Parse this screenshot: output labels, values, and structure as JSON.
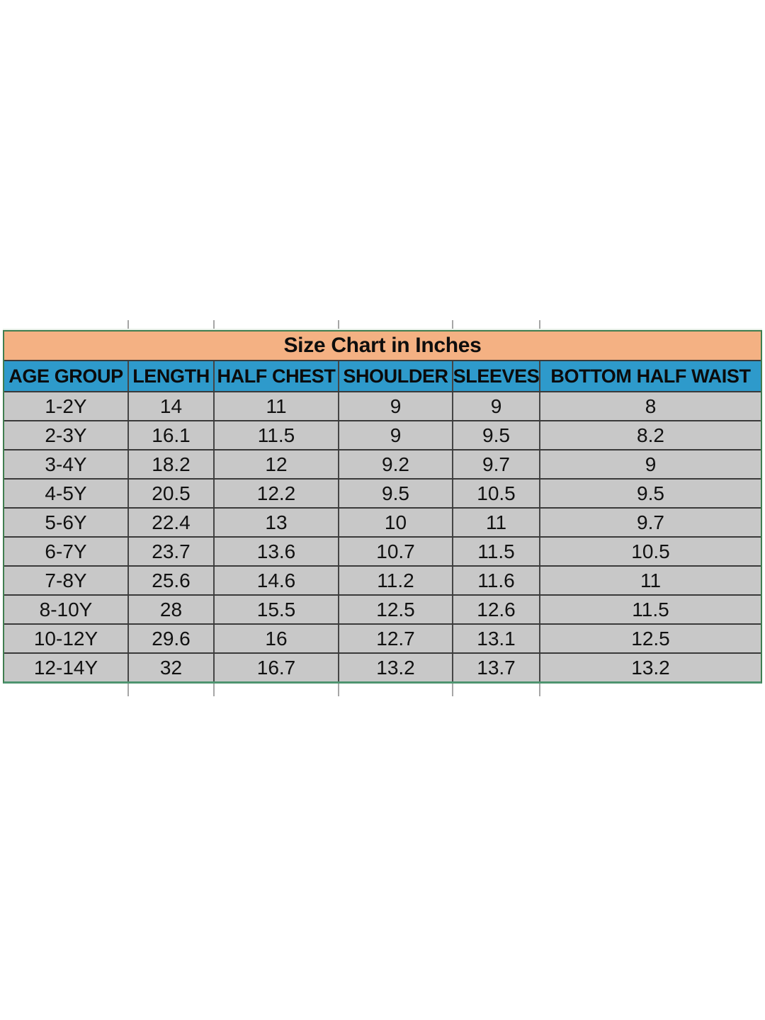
{
  "chart_data": {
    "type": "table",
    "title": "Size Chart in Inches",
    "columns": [
      "AGE GROUP",
      "LENGTH",
      "HALF CHEST",
      "SHOULDER",
      "SLEEVES",
      "BOTTOM  HALF WAIST"
    ],
    "rows": [
      [
        "1-2Y",
        "14",
        "11",
        "9",
        "9",
        "8"
      ],
      [
        "2-3Y",
        "16.1",
        "11.5",
        "9",
        "9.5",
        "8.2"
      ],
      [
        "3-4Y",
        "18.2",
        "12",
        "9.2",
        "9.7",
        "9"
      ],
      [
        "4-5Y",
        "20.5",
        "12.2",
        "9.5",
        "10.5",
        "9.5"
      ],
      [
        "5-6Y",
        "22.4",
        "13",
        "10",
        "11",
        "9.7"
      ],
      [
        "6-7Y",
        "23.7",
        "13.6",
        "10.7",
        "11.5",
        "10.5"
      ],
      [
        "7-8Y",
        "25.6",
        "14.6",
        "11.2",
        "11.6",
        "11"
      ],
      [
        "8-10Y",
        "28",
        "15.5",
        "12.5",
        "12.6",
        "11.5"
      ],
      [
        "10-12Y",
        "29.6",
        "16",
        "12.7",
        "13.1",
        "12.5"
      ],
      [
        "12-14Y",
        "32",
        "16.7",
        "13.2",
        "13.7",
        "13.2"
      ]
    ],
    "layout": {
      "grid": "on",
      "header_position": "top",
      "unit": "inches"
    }
  },
  "colors": {
    "title_bg": "#F4B183",
    "header_bg": "#2E9ACB",
    "row_bg": "#C8C8C8",
    "border_green": "#3F7D4F",
    "border_green_bottom": "#4E9470",
    "grid_line": "#3a3a3a",
    "text": "#111111"
  }
}
